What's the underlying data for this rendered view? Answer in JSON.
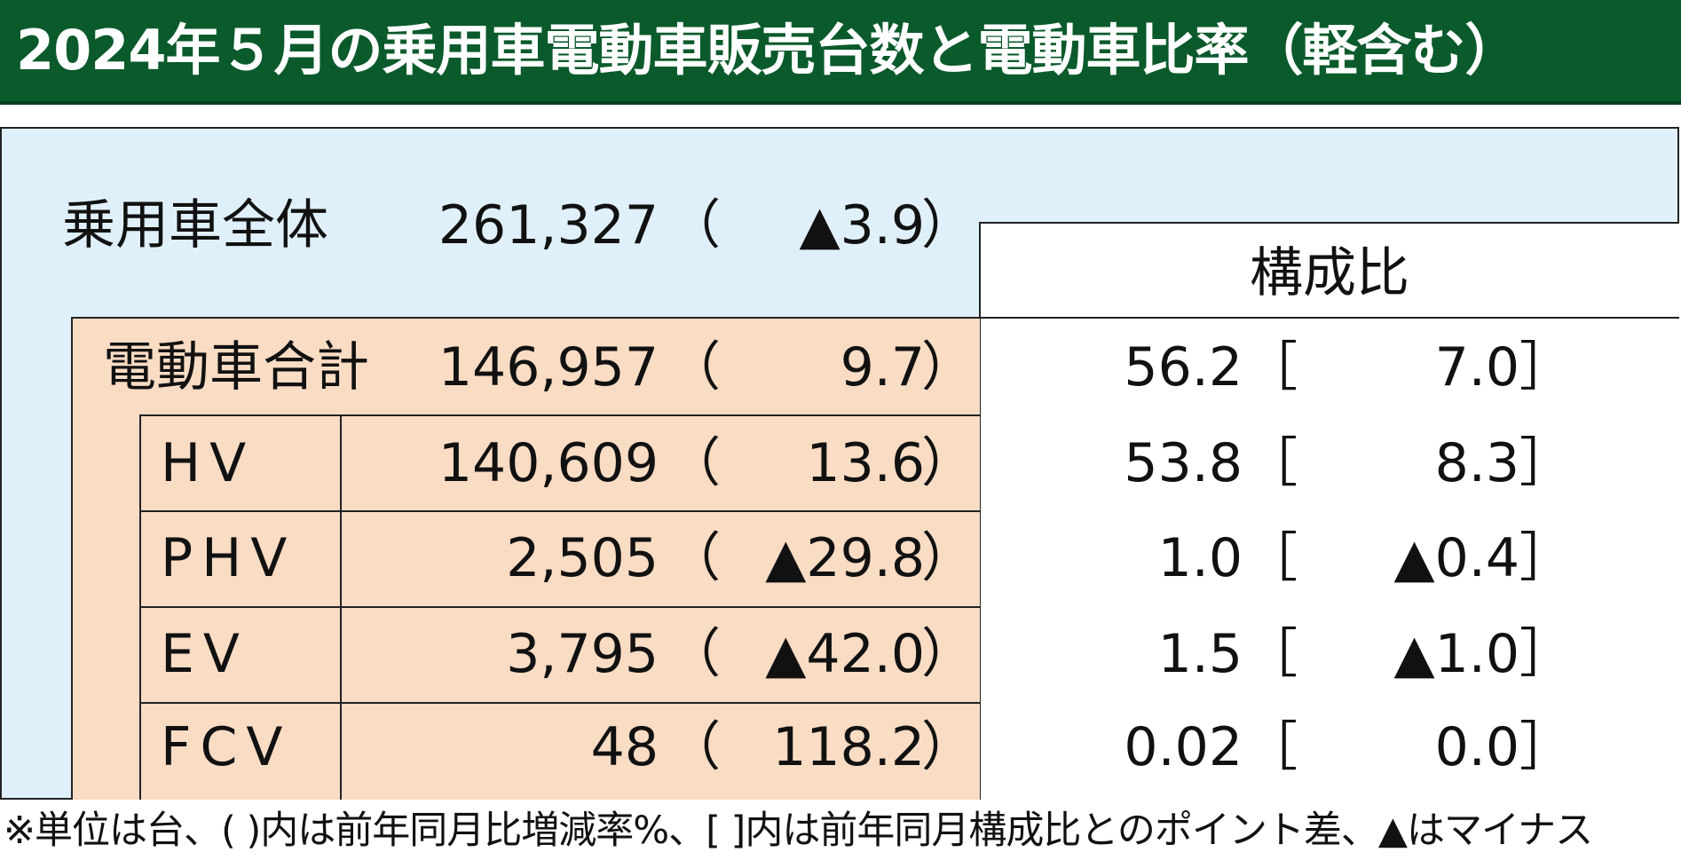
{
  "title": "2024年５月の乗用車電動車販売台数と電動車比率（軽含む）",
  "header": {
    "composition": "構成比"
  },
  "delimiters": {
    "paren_open": "（",
    "paren_close": "）",
    "bracket_open": "［",
    "bracket_close": "］"
  },
  "rows": [
    {
      "label": "乗用車全体",
      "count": "261,327",
      "yoy": "▲3.9"
    },
    {
      "label": "電動車合計",
      "count": "146,957",
      "yoy": "9.7",
      "share": "56.2",
      "share_diff": "7.0"
    },
    {
      "label": "HV",
      "count": "140,609",
      "yoy": "13.6",
      "share": "53.8",
      "share_diff": "8.3"
    },
    {
      "label": "PHV",
      "count": "2,505",
      "yoy": "▲29.8",
      "share": "1.0",
      "share_diff": "▲0.4"
    },
    {
      "label": "EV",
      "count": "3,795",
      "yoy": "▲42.0",
      "share": "1.5",
      "share_diff": "▲1.0"
    },
    {
      "label": "FCV",
      "count": "48",
      "yoy": "118.2",
      "share": "0.02",
      "share_diff": "0.0"
    }
  ],
  "footnote": "※単位は台、( )内は前年同月比増減率%、[ ]内は前年同月構成比とのポイント差、▲はマイナス"
}
